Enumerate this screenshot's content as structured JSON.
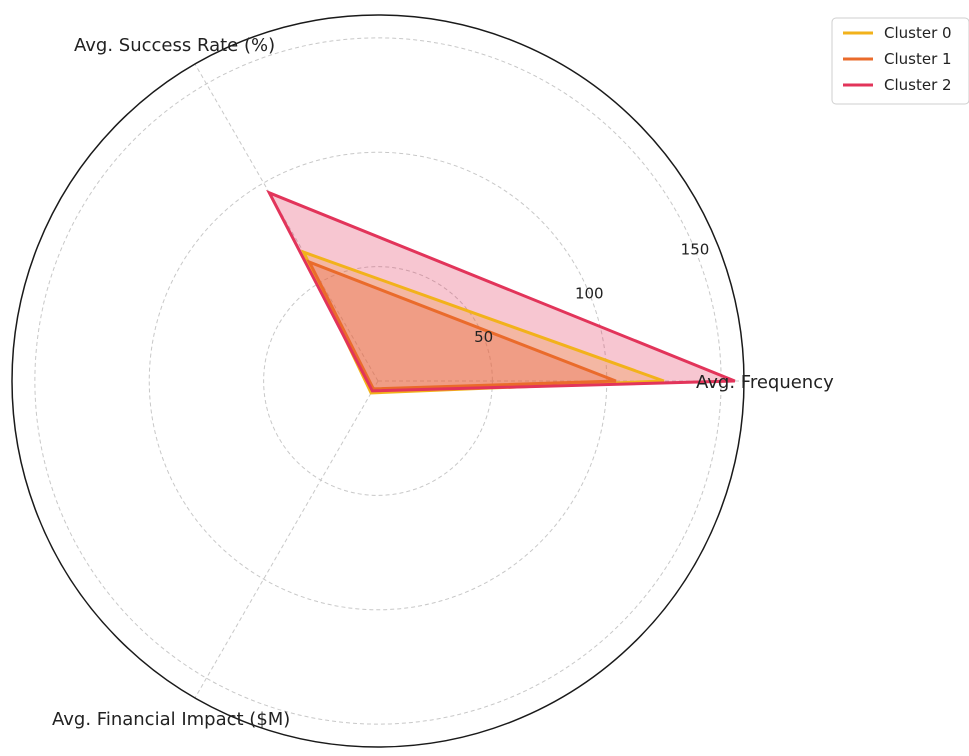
{
  "chart_data": {
    "type": "radar",
    "axes": [
      "Avg. Frequency",
      "Avg. Success Rate (%)",
      "Avg. Financial Impact ($M)"
    ],
    "rlim": [
      0,
      160
    ],
    "r_ticks": [
      50,
      100,
      150
    ],
    "r_tick_labels": [
      "50",
      "100",
      "150"
    ],
    "grid": true,
    "legend_placement": "top-right",
    "series": [
      {
        "name": "Cluster 0",
        "values": [
          125,
          65,
          6
        ],
        "color": "#f2b21b"
      },
      {
        "name": "Cluster 1",
        "values": [
          104,
          60,
          4
        ],
        "color": "#ea6b2b"
      },
      {
        "name": "Cluster 2",
        "values": [
          156,
          95,
          5
        ],
        "color": "#e2345a"
      }
    ]
  }
}
